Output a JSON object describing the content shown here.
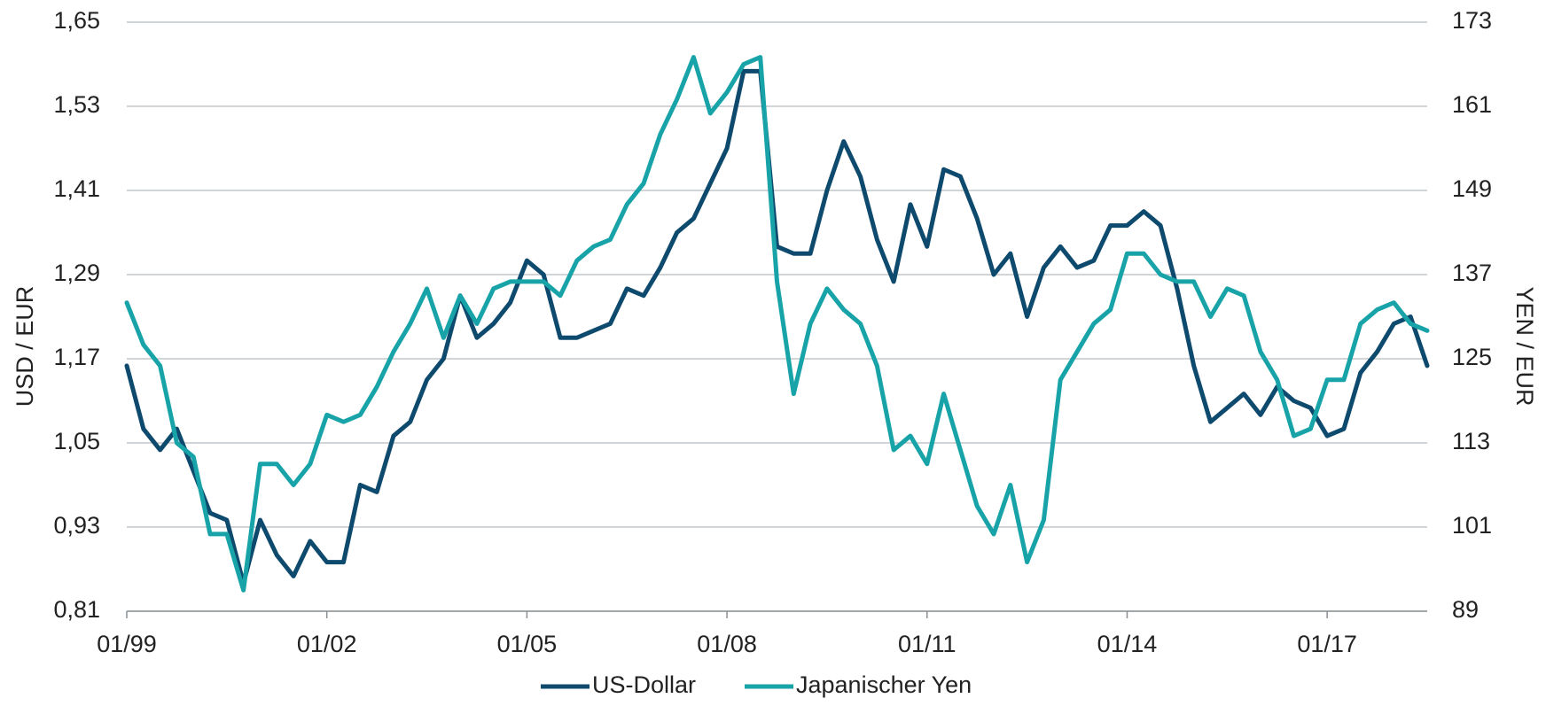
{
  "chart_data": {
    "type": "line",
    "y_label": "USD / EUR",
    "y2_label": "YEN / EUR",
    "x": [
      "1999-01",
      "1999-04",
      "1999-07",
      "1999-10",
      "2000-01",
      "2000-04",
      "2000-07",
      "2000-10",
      "2001-01",
      "2001-04",
      "2001-07",
      "2001-10",
      "2002-01",
      "2002-04",
      "2002-07",
      "2002-10",
      "2003-01",
      "2003-04",
      "2003-07",
      "2003-10",
      "2004-01",
      "2004-04",
      "2004-07",
      "2004-10",
      "2005-01",
      "2005-04",
      "2005-07",
      "2005-10",
      "2006-01",
      "2006-04",
      "2006-07",
      "2006-10",
      "2007-01",
      "2007-04",
      "2007-07",
      "2007-10",
      "2008-01",
      "2008-04",
      "2008-07",
      "2008-10",
      "2009-01",
      "2009-04",
      "2009-07",
      "2009-10",
      "2010-01",
      "2010-04",
      "2010-07",
      "2010-10",
      "2011-01",
      "2011-04",
      "2011-07",
      "2011-10",
      "2012-01",
      "2012-04",
      "2012-07",
      "2012-10",
      "2013-01",
      "2013-04",
      "2013-07",
      "2013-10",
      "2014-01",
      "2014-04",
      "2014-07",
      "2014-10",
      "2015-01",
      "2015-04",
      "2015-07",
      "2015-10",
      "2016-01",
      "2016-04",
      "2016-07",
      "2016-10",
      "2017-01",
      "2017-04",
      "2017-07",
      "2017-10",
      "2018-01",
      "2018-04",
      "2018-07"
    ],
    "xlim": [
      "1999-01",
      "2018-07"
    ],
    "xticks": [
      {
        "value": "1999-01",
        "label": "01/99"
      },
      {
        "value": "2002-01",
        "label": "01/02"
      },
      {
        "value": "2005-01",
        "label": "01/05"
      },
      {
        "value": "2008-01",
        "label": "01/08"
      },
      {
        "value": "2011-01",
        "label": "01/11"
      },
      {
        "value": "2014-01",
        "label": "01/14"
      },
      {
        "value": "2017-01",
        "label": "01/17"
      }
    ],
    "ylim": [
      0.81,
      1.65
    ],
    "yticks": [
      {
        "value": 0.81,
        "label": "0,81"
      },
      {
        "value": 0.93,
        "label": "0,93"
      },
      {
        "value": 1.05,
        "label": "1,05"
      },
      {
        "value": 1.17,
        "label": "1,17"
      },
      {
        "value": 1.29,
        "label": "1,29"
      },
      {
        "value": 1.41,
        "label": "1,41"
      },
      {
        "value": 1.53,
        "label": "1,53"
      },
      {
        "value": 1.65,
        "label": "1,65"
      }
    ],
    "y2lim": [
      89,
      173
    ],
    "y2ticks": [
      89,
      101,
      113,
      125,
      137,
      149,
      161,
      173
    ],
    "grid": true,
    "legend": "bottom",
    "series": [
      {
        "name": "US-Dollar",
        "color": "#0e4a6d",
        "values": [
          1.16,
          1.07,
          1.04,
          1.07,
          1.01,
          0.95,
          0.94,
          0.85,
          0.94,
          0.89,
          0.86,
          0.91,
          0.88,
          0.88,
          0.99,
          0.98,
          1.06,
          1.08,
          1.14,
          1.17,
          1.26,
          1.2,
          1.22,
          1.25,
          1.31,
          1.29,
          1.2,
          1.2,
          1.21,
          1.22,
          1.27,
          1.26,
          1.3,
          1.35,
          1.37,
          1.42,
          1.47,
          1.58,
          1.58,
          1.33,
          1.32,
          1.32,
          1.41,
          1.48,
          1.43,
          1.34,
          1.28,
          1.39,
          1.33,
          1.44,
          1.43,
          1.37,
          1.29,
          1.32,
          1.23,
          1.3,
          1.33,
          1.3,
          1.31,
          1.36,
          1.36,
          1.38,
          1.36,
          1.27,
          1.16,
          1.08,
          1.1,
          1.12,
          1.09,
          1.13,
          1.11,
          1.1,
          1.06,
          1.07,
          1.15,
          1.18,
          1.22,
          1.23,
          1.16
        ]
      },
      {
        "name": "Japanischer Yen",
        "color": "#17a3a8",
        "axis": "y2",
        "values": [
          133,
          127,
          124,
          113,
          111,
          100,
          100,
          92,
          110,
          110,
          107,
          110,
          117,
          116,
          117,
          121,
          126,
          130,
          135,
          128,
          134,
          130,
          135,
          136,
          136,
          136,
          134,
          139,
          141,
          142,
          147,
          150,
          157,
          162,
          168,
          160,
          163,
          167,
          168,
          136,
          120,
          130,
          135,
          132,
          130,
          124,
          112,
          114,
          110,
          120,
          112,
          104,
          100,
          107,
          96,
          102,
          122,
          126,
          130,
          132,
          140,
          140,
          137,
          136,
          136,
          131,
          135,
          134,
          126,
          122,
          114,
          115,
          122,
          122,
          130,
          132,
          133,
          130,
          129
        ]
      }
    ]
  }
}
